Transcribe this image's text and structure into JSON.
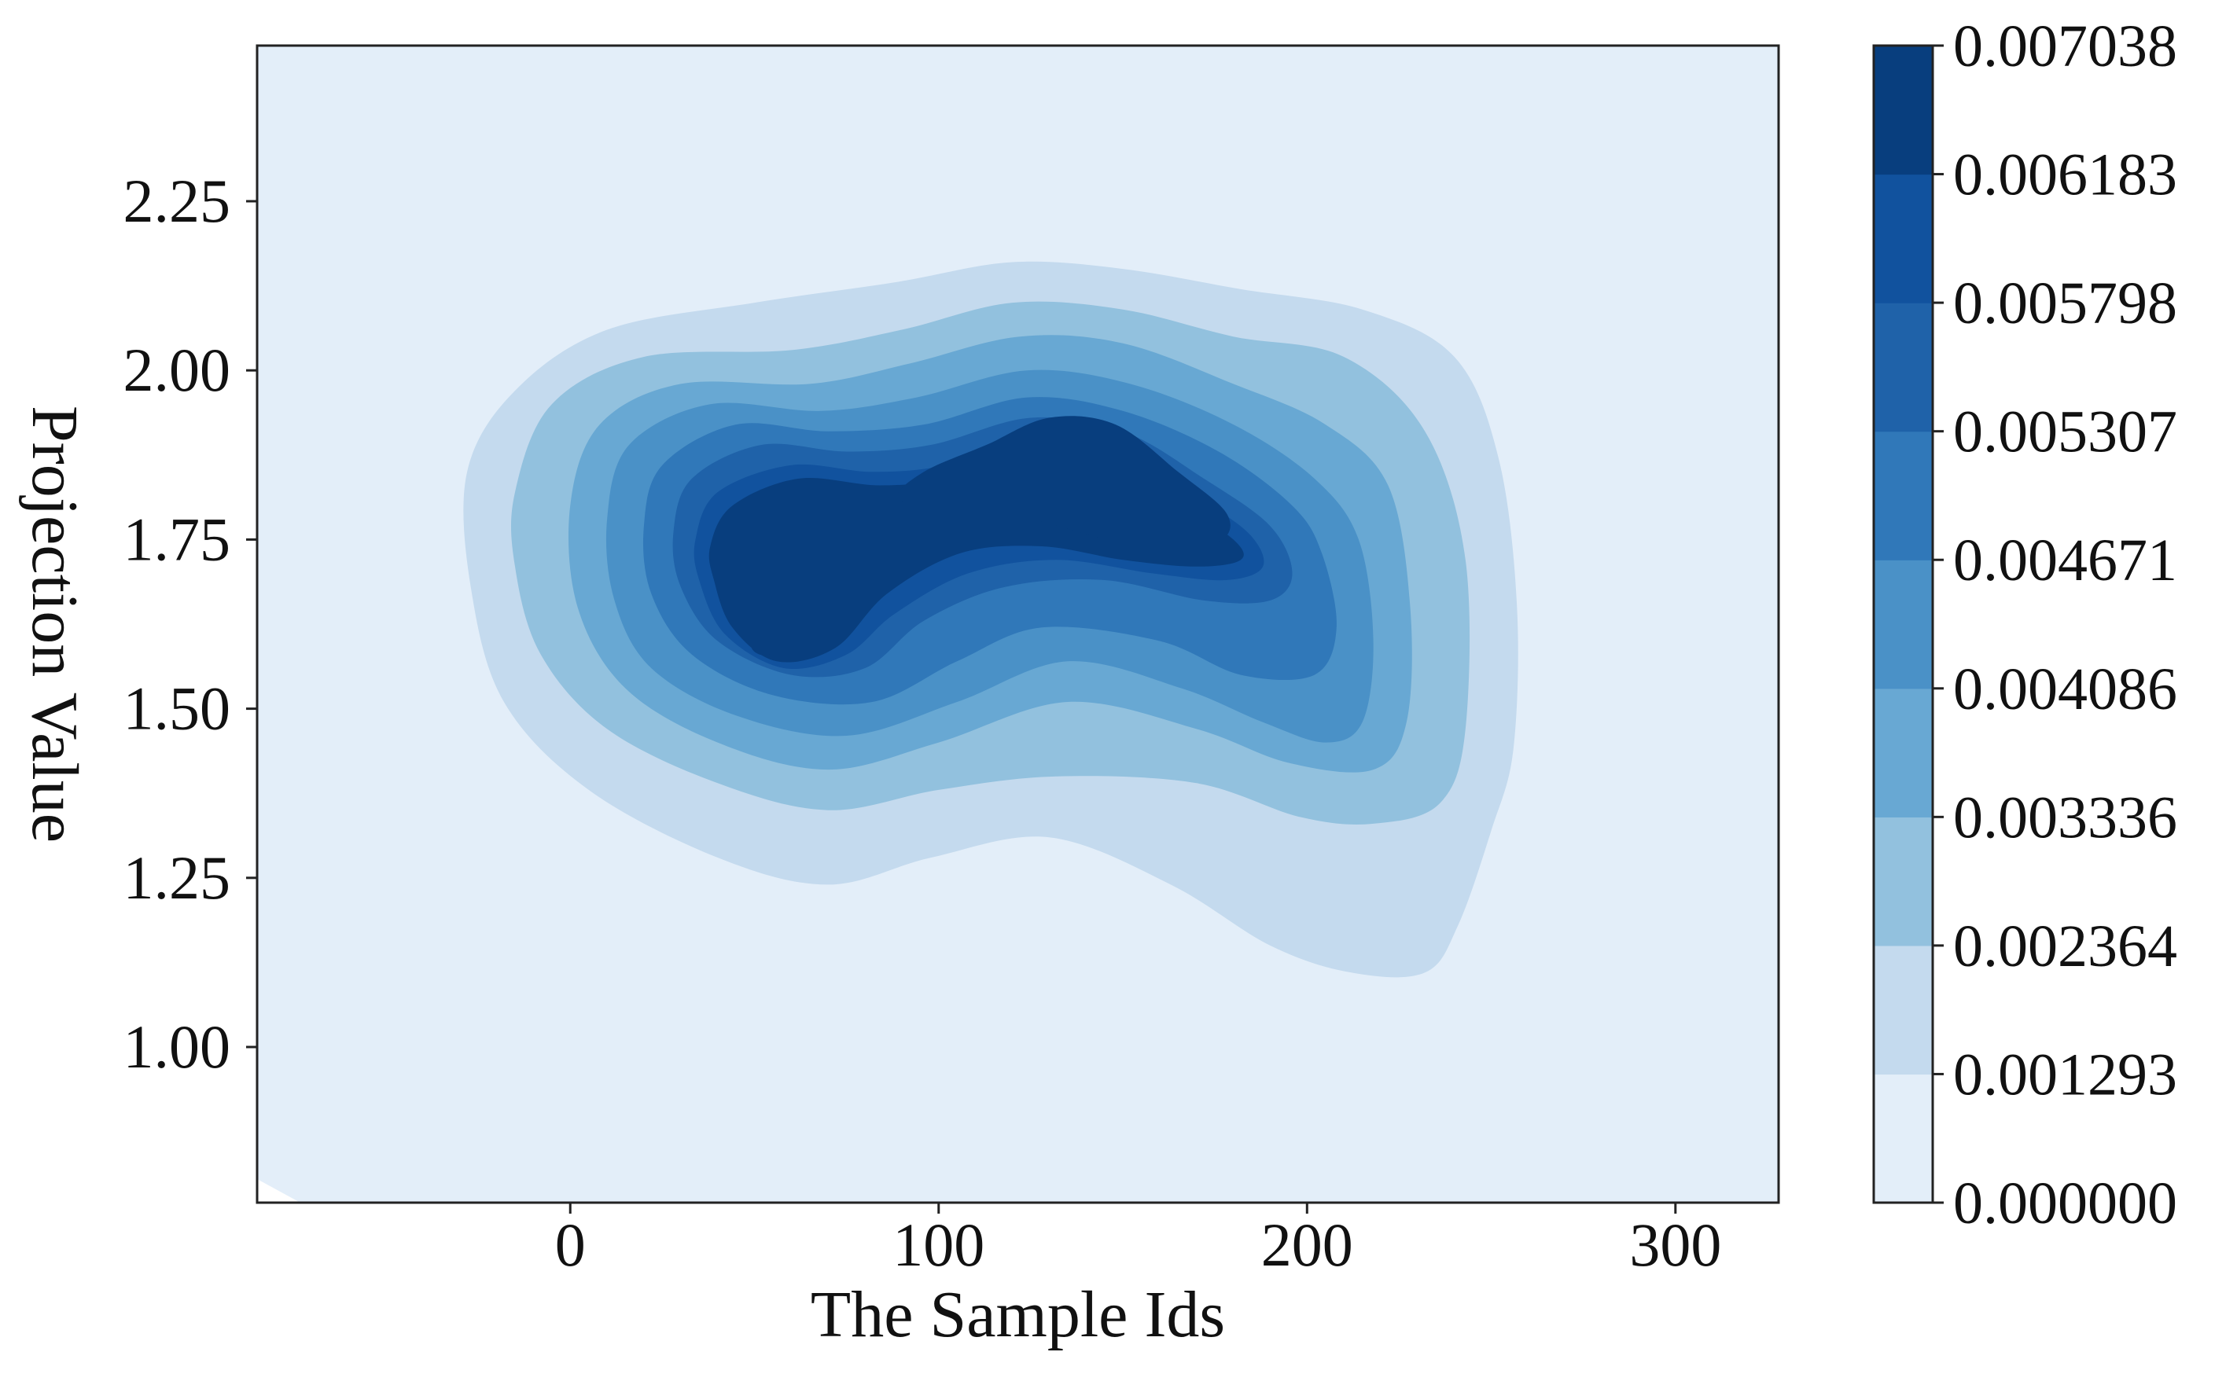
{
  "chart_data": {
    "type": "heatmap",
    "subtype": "filled-contour (KDE)",
    "title": "",
    "xlabel": "The Sample Ids",
    "ylabel": "Projection Value",
    "xlim": [
      -85,
      328
    ],
    "ylim": [
      0.77,
      2.48
    ],
    "x_ticks": [
      0,
      100,
      200,
      300
    ],
    "x_tick_labels": [
      "0",
      "100",
      "200",
      "300"
    ],
    "y_ticks": [
      1.0,
      1.25,
      1.5,
      1.75,
      2.0,
      2.25
    ],
    "y_tick_labels": [
      "1.00",
      "1.25",
      "1.50",
      "1.75",
      "2.00",
      "2.25"
    ],
    "grid": false,
    "colormap": "Blues",
    "levels": [
      0.0,
      0.001293,
      0.002364,
      0.003336,
      0.004086,
      0.004671,
      0.005307,
      0.005798,
      0.006183,
      0.007038
    ],
    "level_labels": [
      "0.000000",
      "0.001293",
      "0.002364",
      "0.003336",
      "0.004086",
      "0.004671",
      "0.005307",
      "0.005798",
      "0.006183",
      "0.007038"
    ],
    "level_colors": [
      "#e3eef9",
      "#c4daee",
      "#92c1de",
      "#68a8d3",
      "#4a91c7",
      "#3078b9",
      "#1f62a9",
      "#11529e",
      "#083e7e"
    ],
    "density_peaks": [
      {
        "x": 140,
        "y": 1.82,
        "value": 0.007038
      },
      {
        "x": 52,
        "y": 1.59,
        "value": 0.0064
      }
    ],
    "colorbar": {
      "orientation": "vertical",
      "placement": "right"
    }
  }
}
